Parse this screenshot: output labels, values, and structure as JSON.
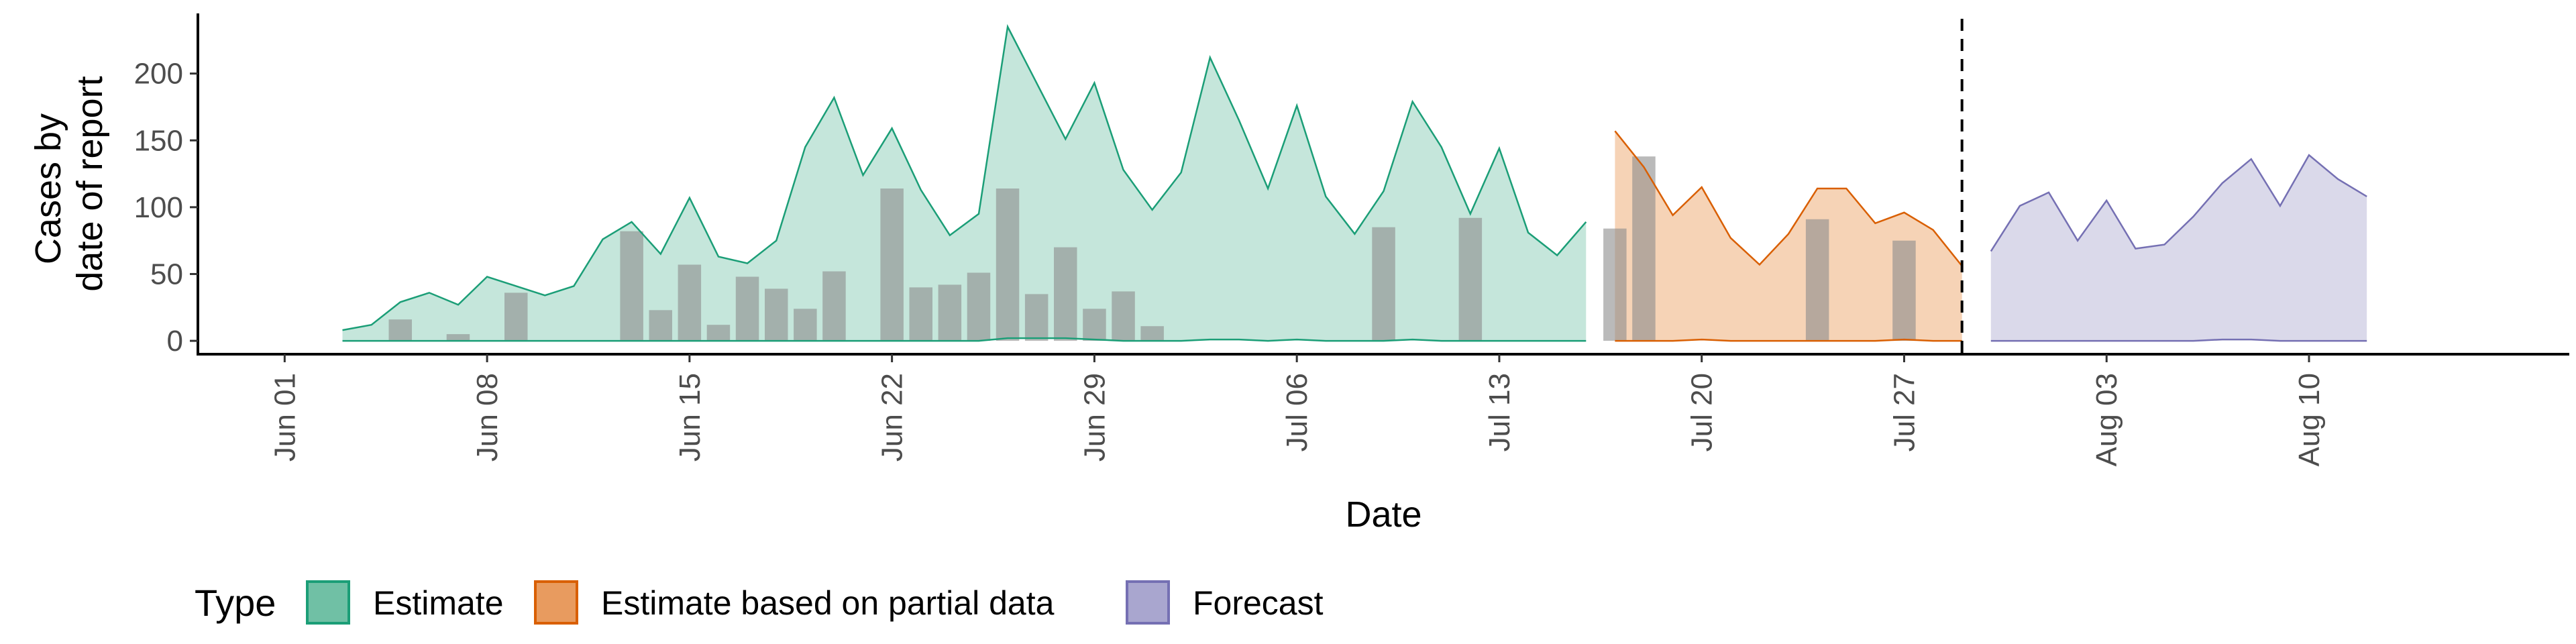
{
  "chart_data": {
    "type": "area",
    "xlabel": "Date",
    "ylabel_lines": [
      "Cases by",
      "date of report"
    ],
    "ylim": [
      -10,
      245
    ],
    "yticks": [
      0,
      50,
      100,
      150,
      200
    ],
    "x_range": [
      "2020-05-29",
      "2020-08-19"
    ],
    "xticks": [
      {
        "date": "2020-06-01",
        "label": "Jun 01"
      },
      {
        "date": "2020-06-08",
        "label": "Jun 08"
      },
      {
        "date": "2020-06-15",
        "label": "Jun 15"
      },
      {
        "date": "2020-06-22",
        "label": "Jun 22"
      },
      {
        "date": "2020-06-29",
        "label": "Jun 29"
      },
      {
        "date": "2020-07-06",
        "label": "Jul 06"
      },
      {
        "date": "2020-07-13",
        "label": "Jul 13"
      },
      {
        "date": "2020-07-20",
        "label": "Jul 20"
      },
      {
        "date": "2020-07-27",
        "label": "Jul 27"
      },
      {
        "date": "2020-08-03",
        "label": "Aug 03"
      },
      {
        "date": "2020-08-10",
        "label": "Aug 10"
      }
    ],
    "vline_date": "2020-07-29",
    "legend_title": "Type",
    "legend_position": "bottom-left",
    "series": [
      {
        "name": "Estimate",
        "fill": "#c5e6db",
        "stroke": "#1b9e77",
        "swatch": "#70c0a5",
        "x": [
          "2020-06-03",
          "2020-06-04",
          "2020-06-05",
          "2020-06-06",
          "2020-06-07",
          "2020-06-08",
          "2020-06-09",
          "2020-06-10",
          "2020-06-11",
          "2020-06-12",
          "2020-06-13",
          "2020-06-14",
          "2020-06-15",
          "2020-06-16",
          "2020-06-17",
          "2020-06-18",
          "2020-06-19",
          "2020-06-20",
          "2020-06-21",
          "2020-06-22",
          "2020-06-23",
          "2020-06-24",
          "2020-06-25",
          "2020-06-26",
          "2020-06-27",
          "2020-06-28",
          "2020-06-29",
          "2020-06-30",
          "2020-07-01",
          "2020-07-02",
          "2020-07-03",
          "2020-07-04",
          "2020-07-05",
          "2020-07-06",
          "2020-07-07",
          "2020-07-08",
          "2020-07-09",
          "2020-07-10",
          "2020-07-11",
          "2020-07-12",
          "2020-07-13",
          "2020-07-14",
          "2020-07-15",
          "2020-07-16"
        ],
        "upper": [
          8,
          12,
          29,
          36,
          27,
          48,
          41,
          34,
          41,
          76,
          89,
          65,
          107,
          63,
          58,
          75,
          145,
          182,
          124,
          159,
          113,
          79,
          95,
          235,
          193,
          151,
          193,
          128,
          98,
          126,
          212,
          165,
          114,
          176,
          108,
          80,
          112,
          179,
          145,
          95,
          144,
          81,
          64,
          89
        ],
        "lower": [
          0,
          0,
          0,
          0,
          0,
          0,
          0,
          0,
          0,
          0,
          0,
          0,
          0,
          0,
          0,
          0,
          0,
          0,
          0,
          0,
          0,
          0,
          0,
          2,
          2,
          2,
          1,
          0,
          0,
          0,
          1,
          1,
          0,
          1,
          0,
          0,
          0,
          1,
          0,
          0,
          0,
          0,
          0,
          0
        ]
      },
      {
        "name": "Estimate based on partial data",
        "fill": "#f6d3b6",
        "stroke": "#d95f02",
        "swatch": "#e89b5f",
        "x": [
          "2020-07-17",
          "2020-07-18",
          "2020-07-19",
          "2020-07-20",
          "2020-07-21",
          "2020-07-22",
          "2020-07-23",
          "2020-07-24",
          "2020-07-25",
          "2020-07-26",
          "2020-07-27",
          "2020-07-28",
          "2020-07-29"
        ],
        "upper": [
          157,
          130,
          94,
          115,
          77,
          57,
          80,
          114,
          114,
          88,
          96,
          83,
          56
        ],
        "lower": [
          0,
          0,
          0,
          1,
          0,
          0,
          0,
          0,
          0,
          0,
          1,
          0,
          0
        ]
      },
      {
        "name": "Forecast",
        "fill": "#dad9ea",
        "stroke": "#7570b3",
        "swatch": "#a9a6cf",
        "x": [
          "2020-07-30",
          "2020-07-31",
          "2020-08-01",
          "2020-08-02",
          "2020-08-03",
          "2020-08-04",
          "2020-08-05",
          "2020-08-06",
          "2020-08-07",
          "2020-08-08",
          "2020-08-09",
          "2020-08-10",
          "2020-08-11",
          "2020-08-12"
        ],
        "upper": [
          67,
          101,
          111,
          75,
          105,
          69,
          72,
          93,
          118,
          136,
          101,
          139,
          121,
          108
        ],
        "lower": [
          0,
          0,
          0,
          0,
          0,
          0,
          0,
          0,
          1,
          1,
          0,
          0,
          0,
          0
        ]
      }
    ],
    "bars": {
      "color": "#8c8c8c",
      "x": [
        "2020-06-05",
        "2020-06-07",
        "2020-06-09",
        "2020-06-13",
        "2020-06-14",
        "2020-06-15",
        "2020-06-16",
        "2020-06-17",
        "2020-06-18",
        "2020-06-19",
        "2020-06-20",
        "2020-06-22",
        "2020-06-23",
        "2020-06-24",
        "2020-06-25",
        "2020-06-26",
        "2020-06-27",
        "2020-06-28",
        "2020-06-29",
        "2020-06-30",
        "2020-07-01",
        "2020-07-09",
        "2020-07-12",
        "2020-07-17",
        "2020-07-18",
        "2020-07-24",
        "2020-07-27"
      ],
      "values": [
        16,
        5,
        36,
        82,
        23,
        57,
        12,
        48,
        39,
        24,
        52,
        114,
        40,
        42,
        51,
        114,
        35,
        70,
        24,
        37,
        11,
        85,
        92,
        84,
        138,
        91,
        75
      ]
    }
  }
}
